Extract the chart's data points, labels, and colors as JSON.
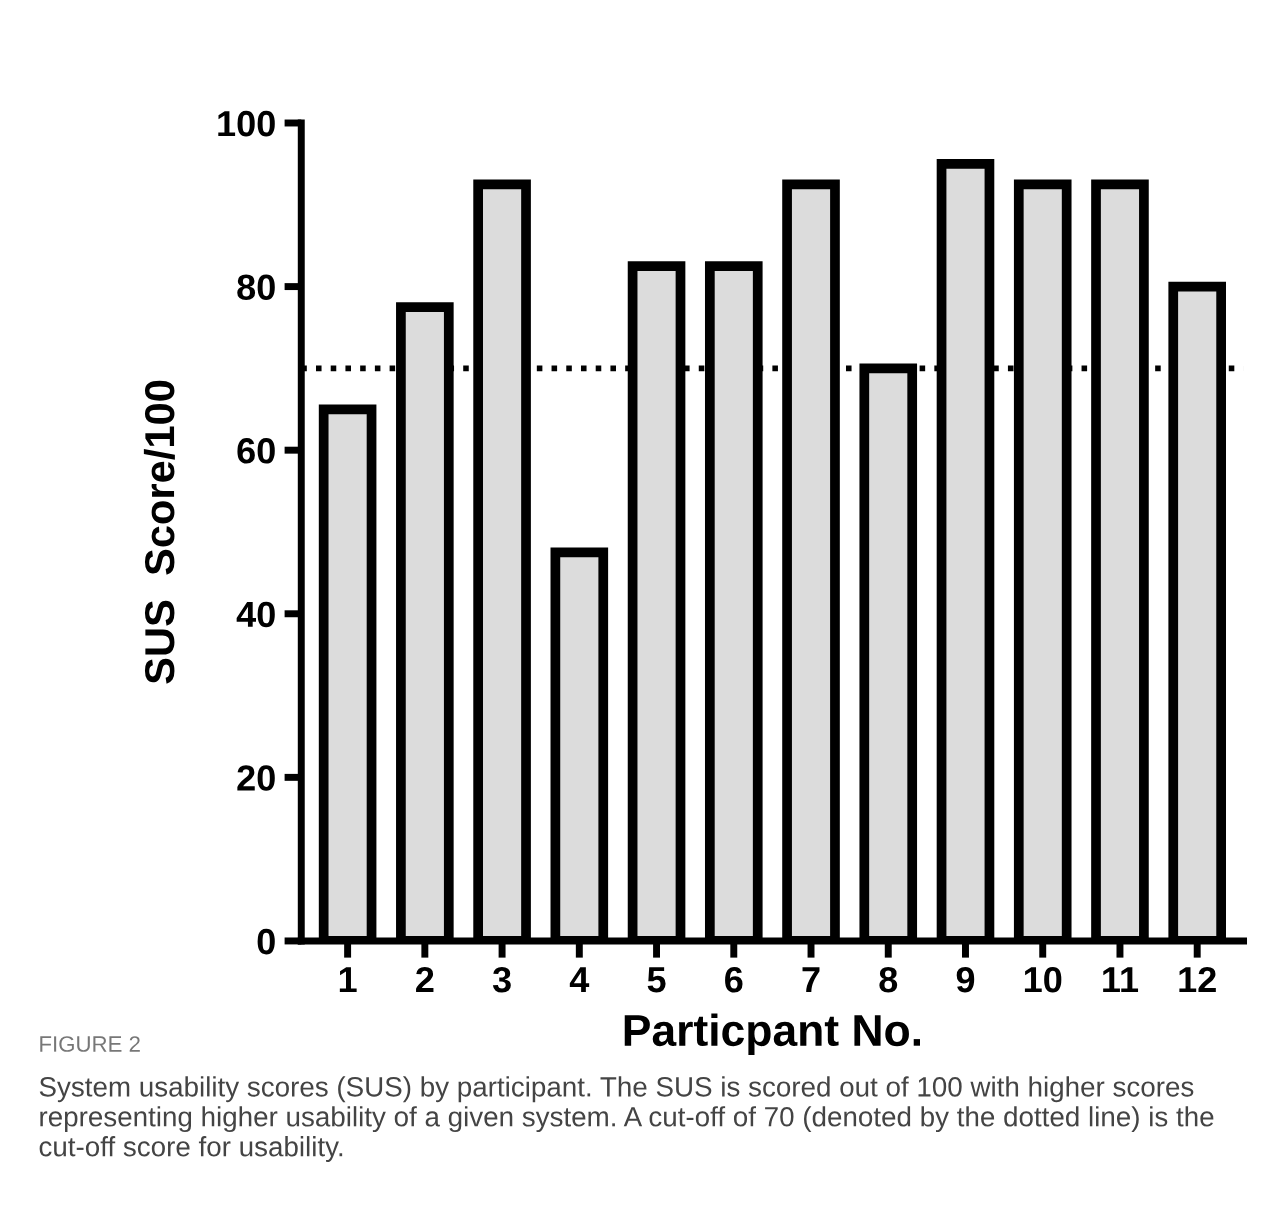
{
  "chart_data": {
    "type": "bar",
    "categories": [
      "1",
      "2",
      "3",
      "4",
      "5",
      "6",
      "7",
      "8",
      "9",
      "10",
      "11",
      "12"
    ],
    "values": [
      65,
      77.5,
      92.5,
      47.5,
      82.5,
      82.5,
      92.5,
      70,
      95,
      92.5,
      92.5,
      80
    ],
    "color": "#dcdcdc",
    "xlabel": "Particpant No.",
    "ylabel": "SUS  Score/100",
    "ylim": [
      0,
      100
    ],
    "yticks": [
      0,
      20,
      40,
      60,
      80,
      100
    ],
    "grid": false,
    "ref_lines": [
      {
        "axis": "y",
        "value": 70,
        "line_style": "dotted",
        "color": "#000000"
      }
    ],
    "annotations": [
      "FIGURE 2",
      "System usability scores (SUS) by participant. The SUS is scored out of 100 with higher scores representing higher usability of a given system. A cut-off of 70 (denoted by the dotted line) is the cut-off score for usability."
    ]
  }
}
